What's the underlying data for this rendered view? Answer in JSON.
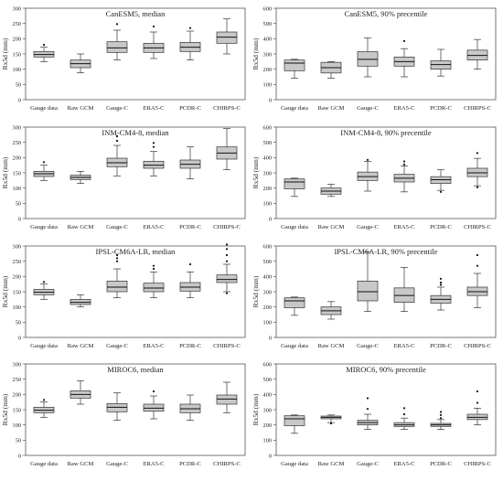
{
  "figure": {
    "y_axis_label": "Rx5d (mm)",
    "categories": [
      "Gauge data",
      "Raw GCM",
      "Gauge-C",
      "ERA5-C",
      "PCDR-C",
      "CHIRPS-C"
    ],
    "box_fill": "#c8c8c8",
    "frame_color": "#555555"
  },
  "chart_data": [
    {
      "type": "box",
      "title": "CanESM5, median",
      "ylabel": "Rx5d (mm)",
      "ylim": [
        0,
        300
      ],
      "yticks": [
        0,
        50,
        100,
        150,
        200,
        250,
        300
      ],
      "categories": [
        "Gauge data",
        "Raw GCM",
        "Gauge-C",
        "ERA5-C",
        "PCDR-C",
        "CHIRPS-C"
      ],
      "boxes": [
        {
          "whislo": 125,
          "q1": 140,
          "med": 148,
          "q3": 158,
          "whishi": 172,
          "fliers": [
            180
          ]
        },
        {
          "whislo": 88,
          "q1": 105,
          "med": 118,
          "q3": 130,
          "whishi": 150,
          "fliers": []
        },
        {
          "whislo": 130,
          "q1": 155,
          "med": 170,
          "q3": 190,
          "whishi": 228,
          "fliers": [
            248
          ]
        },
        {
          "whislo": 135,
          "q1": 155,
          "med": 170,
          "q3": 185,
          "whishi": 222,
          "fliers": [
            240
          ]
        },
        {
          "whislo": 130,
          "q1": 158,
          "med": 172,
          "q3": 188,
          "whishi": 225,
          "fliers": [
            235
          ]
        },
        {
          "whislo": 150,
          "q1": 185,
          "med": 205,
          "q3": 222,
          "whishi": 265,
          "fliers": []
        }
      ]
    },
    {
      "type": "box",
      "title": "CanESM5, 90% precentile",
      "ylabel": "Rx5d (mm)",
      "ylim": [
        0,
        600
      ],
      "yticks": [
        0,
        100,
        200,
        300,
        400,
        500,
        600
      ],
      "categories": [
        "Gauge data",
        "Raw GCM",
        "Gauge-C",
        "ERA5-C",
        "PCDR-C",
        "CHIRPS-C"
      ],
      "boxes": [
        {
          "whislo": 140,
          "q1": 190,
          "med": 240,
          "q3": 260,
          "whishi": 265,
          "fliers": []
        },
        {
          "whislo": 140,
          "q1": 175,
          "med": 210,
          "q3": 245,
          "whishi": 250,
          "fliers": []
        },
        {
          "whislo": 150,
          "q1": 220,
          "med": 265,
          "q3": 315,
          "whishi": 405,
          "fliers": []
        },
        {
          "whislo": 150,
          "q1": 220,
          "med": 250,
          "q3": 280,
          "whishi": 335,
          "fliers": [
            385
          ]
        },
        {
          "whislo": 155,
          "q1": 200,
          "med": 230,
          "q3": 255,
          "whishi": 330,
          "fliers": []
        },
        {
          "whislo": 200,
          "q1": 260,
          "med": 290,
          "q3": 325,
          "whishi": 395,
          "fliers": []
        }
      ]
    },
    {
      "type": "box",
      "title": "INM-CM4-8, median",
      "ylabel": "Rx5d (mm)",
      "ylim": [
        0,
        300
      ],
      "yticks": [
        0,
        50,
        100,
        150,
        200,
        250,
        300
      ],
      "categories": [
        "Gauge data",
        "Raw GCM",
        "Gauge-C",
        "ERA5-C",
        "PCDR-C",
        "CHIRPS-C"
      ],
      "boxes": [
        {
          "whislo": 125,
          "q1": 138,
          "med": 147,
          "q3": 155,
          "whishi": 175,
          "fliers": [
            185
          ]
        },
        {
          "whislo": 115,
          "q1": 128,
          "med": 135,
          "q3": 142,
          "whishi": 155,
          "fliers": []
        },
        {
          "whislo": 140,
          "q1": 170,
          "med": 183,
          "q3": 198,
          "whishi": 240,
          "fliers": [
            255,
            270
          ]
        },
        {
          "whislo": 140,
          "q1": 165,
          "med": 175,
          "q3": 188,
          "whishi": 220,
          "fliers": [
            235,
            248
          ]
        },
        {
          "whislo": 130,
          "q1": 165,
          "med": 178,
          "q3": 192,
          "whishi": 235,
          "fliers": []
        },
        {
          "whislo": 160,
          "q1": 195,
          "med": 215,
          "q3": 235,
          "whishi": 295,
          "fliers": []
        }
      ]
    },
    {
      "type": "box",
      "title": "INM-CM4-8, 90% precentile",
      "ylabel": "Rx5d (mm)",
      "ylim": [
        0,
        600
      ],
      "yticks": [
        0,
        100,
        200,
        300,
        400,
        500,
        600
      ],
      "categories": [
        "Gauge data",
        "Raw GCM",
        "Gauge-C",
        "ERA5-C",
        "PCDR-C",
        "CHIRPS-C"
      ],
      "boxes": [
        {
          "whislo": 145,
          "q1": 195,
          "med": 240,
          "q3": 260,
          "whishi": 265,
          "fliers": []
        },
        {
          "whislo": 145,
          "q1": 160,
          "med": 180,
          "q3": 200,
          "whishi": 225,
          "fliers": []
        },
        {
          "whislo": 180,
          "q1": 250,
          "med": 275,
          "q3": 305,
          "whishi": 375,
          "fliers": [
            385
          ]
        },
        {
          "whislo": 175,
          "q1": 240,
          "med": 265,
          "q3": 290,
          "whishi": 345,
          "fliers": [
            355,
            375
          ]
        },
        {
          "whislo": 185,
          "q1": 230,
          "med": 255,
          "q3": 275,
          "whishi": 320,
          "fliers": [
            175
          ]
        },
        {
          "whislo": 215,
          "q1": 275,
          "med": 300,
          "q3": 330,
          "whishi": 395,
          "fliers": [
            205,
            430
          ]
        }
      ]
    },
    {
      "type": "box",
      "title": "IPSL-CM6A-LR, median",
      "ylabel": "Rx5d (mm)",
      "ylim": [
        0,
        300
      ],
      "yticks": [
        0,
        50,
        100,
        150,
        200,
        250,
        300
      ],
      "categories": [
        "Gauge data",
        "Raw GCM",
        "Gauge-C",
        "ERA5-C",
        "PCDR-C",
        "CHIRPS-C"
      ],
      "boxes": [
        {
          "whislo": 125,
          "q1": 140,
          "med": 148,
          "q3": 158,
          "whishi": 175,
          "fliers": [
            182
          ]
        },
        {
          "whislo": 100,
          "q1": 108,
          "med": 115,
          "q3": 125,
          "whishi": 140,
          "fliers": []
        },
        {
          "whislo": 130,
          "q1": 150,
          "med": 165,
          "q3": 185,
          "whishi": 225,
          "fliers": [
            250,
            260,
            270
          ]
        },
        {
          "whislo": 130,
          "q1": 150,
          "med": 162,
          "q3": 178,
          "whishi": 215,
          "fliers": [
            225,
            235
          ]
        },
        {
          "whislo": 130,
          "q1": 152,
          "med": 165,
          "q3": 180,
          "whishi": 215,
          "fliers": [
            240
          ]
        },
        {
          "whislo": 150,
          "q1": 180,
          "med": 190,
          "q3": 205,
          "whishi": 240,
          "fliers": [
            145,
            250,
            270,
            290,
            305
          ]
        }
      ]
    },
    {
      "type": "box",
      "title": "IPSL-CM6A-LR, 90% precentile",
      "ylabel": "Rx5d (mm)",
      "ylim": [
        0,
        600
      ],
      "yticks": [
        0,
        100,
        200,
        300,
        400,
        500,
        600
      ],
      "categories": [
        "Gauge data",
        "Raw GCM",
        "Gauge-C",
        "ERA5-C",
        "PCDR-C",
        "CHIRPS-C"
      ],
      "boxes": [
        {
          "whislo": 145,
          "q1": 195,
          "med": 240,
          "q3": 260,
          "whishi": 265,
          "fliers": []
        },
        {
          "whislo": 120,
          "q1": 150,
          "med": 175,
          "q3": 200,
          "whishi": 235,
          "fliers": []
        },
        {
          "whislo": 170,
          "q1": 240,
          "med": 300,
          "q3": 370,
          "whishi": 560,
          "fliers": []
        },
        {
          "whislo": 170,
          "q1": 230,
          "med": 275,
          "q3": 325,
          "whishi": 460,
          "fliers": []
        },
        {
          "whislo": 180,
          "q1": 225,
          "med": 250,
          "q3": 275,
          "whishi": 330,
          "fliers": [
            345,
            360,
            385
          ]
        },
        {
          "whislo": 195,
          "q1": 275,
          "med": 300,
          "q3": 330,
          "whishi": 420,
          "fliers": [
            470,
            540
          ]
        }
      ]
    },
    {
      "type": "box",
      "title": "MIROC6, median",
      "ylabel": "Rx5d (mm)",
      "ylim": [
        0,
        300
      ],
      "yticks": [
        0,
        50,
        100,
        150,
        200,
        250,
        300
      ],
      "categories": [
        "Gauge data",
        "Raw GCM",
        "Gauge-C",
        "ERA5-C",
        "PCDR-C",
        "CHIRPS-C"
      ],
      "boxes": [
        {
          "whislo": 125,
          "q1": 140,
          "med": 148,
          "q3": 158,
          "whishi": 175,
          "fliers": [
            182
          ]
        },
        {
          "whislo": 168,
          "q1": 188,
          "med": 200,
          "q3": 212,
          "whishi": 245,
          "fliers": []
        },
        {
          "whislo": 115,
          "q1": 143,
          "med": 158,
          "q3": 170,
          "whishi": 205,
          "fliers": []
        },
        {
          "whislo": 120,
          "q1": 145,
          "med": 155,
          "q3": 168,
          "whishi": 195,
          "fliers": [
            210
          ]
        },
        {
          "whislo": 115,
          "q1": 140,
          "med": 153,
          "q3": 168,
          "whishi": 198,
          "fliers": []
        },
        {
          "whislo": 140,
          "q1": 168,
          "med": 185,
          "q3": 198,
          "whishi": 240,
          "fliers": []
        }
      ]
    },
    {
      "type": "box",
      "title": "MIROC6, 90% precentile",
      "ylabel": "Rx5d (mm)",
      "ylim": [
        0,
        600
      ],
      "yticks": [
        0,
        100,
        200,
        300,
        400,
        500,
        600
      ],
      "categories": [
        "Gauge data",
        "Raw GCM",
        "Gauge-C",
        "ERA5-C",
        "PCDR-C",
        "CHIRPS-C"
      ],
      "boxes": [
        {
          "whislo": 145,
          "q1": 195,
          "med": 240,
          "q3": 260,
          "whishi": 265,
          "fliers": []
        },
        {
          "whislo": 215,
          "q1": 240,
          "med": 250,
          "q3": 258,
          "whishi": 265,
          "fliers": [
            210
          ]
        },
        {
          "whislo": 170,
          "q1": 200,
          "med": 215,
          "q3": 230,
          "whishi": 270,
          "fliers": [
            305,
            375
          ]
        },
        {
          "whislo": 170,
          "q1": 190,
          "med": 200,
          "q3": 215,
          "whishi": 245,
          "fliers": [
            270,
            310
          ]
        },
        {
          "whislo": 170,
          "q1": 190,
          "med": 200,
          "q3": 210,
          "whishi": 235,
          "fliers": [
            245,
            265,
            285
          ]
        },
        {
          "whislo": 200,
          "q1": 235,
          "med": 250,
          "q3": 270,
          "whishi": 310,
          "fliers": [
            345,
            420
          ]
        }
      ]
    }
  ]
}
